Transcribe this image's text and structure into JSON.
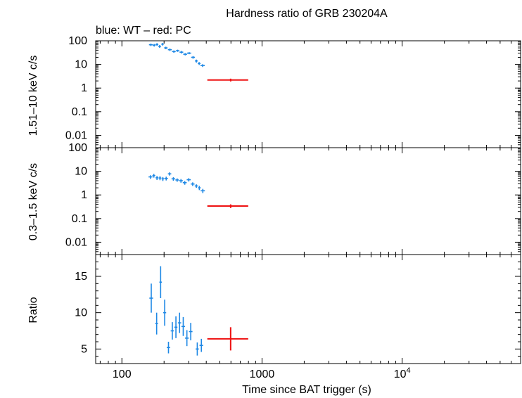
{
  "header": {
    "title": "Hardness ratio of GRB 230204A",
    "subtitle": "blue: WT – red: PC"
  },
  "axes": {
    "xlabel": "Time since BAT trigger (s)",
    "ylabel_top": "1.51–10 keV c/s",
    "ylabel_mid": "0.3–1.5 keV c/s",
    "ylabel_bottom": "Ratio",
    "x_tick_labels": [
      {
        "value": 100,
        "label": "100"
      },
      {
        "value": 1000,
        "label": "1000"
      },
      {
        "value": 10000,
        "label": "10",
        "sup": "4"
      }
    ],
    "log_y_tick_labels": [
      {
        "value": 100,
        "label": "100"
      },
      {
        "value": 10,
        "label": "10"
      },
      {
        "value": 1,
        "label": "1"
      },
      {
        "value": 0.1,
        "label": "0.1"
      },
      {
        "value": 0.01,
        "label": "0.01"
      }
    ],
    "ratio_tick_labels": [
      {
        "value": 15,
        "label": "15"
      },
      {
        "value": 10,
        "label": "10"
      },
      {
        "value": 5,
        "label": "5"
      }
    ]
  },
  "colors": {
    "WT": "#1e88e5",
    "PC": "#ee1111",
    "axis": "#000000"
  },
  "chart_data": [
    {
      "type": "scatter",
      "panel": "hard",
      "xscale": "log",
      "yscale": "log",
      "xlim": [
        65,
        70000
      ],
      "ylim": [
        0.003,
        100
      ],
      "grid": false,
      "series": [
        {
          "name": "WT",
          "color": "#1e88e5",
          "points": [
            {
              "x": 161,
              "xerr": [
                5,
                5
              ],
              "y": 68,
              "yerr": [
                8,
                8
              ]
            },
            {
              "x": 170,
              "xerr": [
                4,
                4
              ],
              "y": 65,
              "yerr": [
                8,
                8
              ]
            },
            {
              "x": 178,
              "xerr": [
                4,
                4
              ],
              "y": 70,
              "yerr": [
                9,
                9
              ]
            },
            {
              "x": 186,
              "xerr": [
                4,
                4
              ],
              "y": 58,
              "yerr": [
                8,
                8
              ]
            },
            {
              "x": 195,
              "xerr": [
                4,
                4
              ],
              "y": 72,
              "yerr": [
                9,
                9
              ]
            },
            {
              "x": 206,
              "xerr": [
                6,
                6
              ],
              "y": 50,
              "yerr": [
                6,
                6
              ]
            },
            {
              "x": 220,
              "xerr": [
                7,
                7
              ],
              "y": 42,
              "yerr": [
                5,
                5
              ]
            },
            {
              "x": 235,
              "xerr": [
                7,
                7
              ],
              "y": 35,
              "yerr": [
                4,
                4
              ]
            },
            {
              "x": 250,
              "xerr": [
                7,
                7
              ],
              "y": 38,
              "yerr": [
                4,
                4
              ]
            },
            {
              "x": 266,
              "xerr": [
                8,
                8
              ],
              "y": 33,
              "yerr": [
                4,
                4
              ]
            },
            {
              "x": 283,
              "xerr": [
                9,
                9
              ],
              "y": 27,
              "yerr": [
                3,
                3
              ]
            },
            {
              "x": 302,
              "xerr": [
                10,
                10
              ],
              "y": 30,
              "yerr": [
                3,
                3
              ]
            },
            {
              "x": 322,
              "xerr": [
                10,
                10
              ],
              "y": 20,
              "yerr": [
                2.5,
                2.5
              ]
            },
            {
              "x": 340,
              "xerr": [
                8,
                8
              ],
              "y": 14,
              "yerr": [
                2,
                2
              ]
            },
            {
              "x": 356,
              "xerr": [
                8,
                8
              ],
              "y": 11,
              "yerr": [
                1.5,
                1.5
              ]
            },
            {
              "x": 377,
              "xerr": [
                13,
                13
              ],
              "y": 9,
              "yerr": [
                1.2,
                1.2
              ]
            }
          ]
        },
        {
          "name": "PC",
          "color": "#ee1111",
          "points": [
            {
              "x": 597,
              "xerr": [
                190,
                200
              ],
              "y": 2.2,
              "yerr": [
                0.3,
                0.3
              ]
            }
          ]
        }
      ]
    },
    {
      "type": "scatter",
      "panel": "soft",
      "xscale": "log",
      "yscale": "log",
      "xlim": [
        65,
        70000
      ],
      "ylim": [
        0.003,
        100
      ],
      "grid": false,
      "series": [
        {
          "name": "WT",
          "color": "#1e88e5",
          "points": [
            {
              "x": 160,
              "xerr": [
                5,
                5
              ],
              "y": 5.8,
              "yerr": [
                1.0,
                1.0
              ]
            },
            {
              "x": 169,
              "xerr": [
                4,
                4
              ],
              "y": 6.6,
              "yerr": [
                1.2,
                1.2
              ]
            },
            {
              "x": 178,
              "xerr": [
                4,
                4
              ],
              "y": 5.3,
              "yerr": [
                1.0,
                1.0
              ]
            },
            {
              "x": 187,
              "xerr": [
                4,
                4
              ],
              "y": 5.2,
              "yerr": [
                1.0,
                1.0
              ]
            },
            {
              "x": 196,
              "xerr": [
                4,
                4
              ],
              "y": 4.8,
              "yerr": [
                0.9,
                0.9
              ]
            },
            {
              "x": 207,
              "xerr": [
                6,
                6
              ],
              "y": 5.0,
              "yerr": [
                0.9,
                0.9
              ]
            },
            {
              "x": 219,
              "xerr": [
                6,
                6
              ],
              "y": 7.8,
              "yerr": [
                1.2,
                1.2
              ]
            },
            {
              "x": 233,
              "xerr": [
                7,
                7
              ],
              "y": 4.8,
              "yerr": [
                0.8,
                0.8
              ]
            },
            {
              "x": 248,
              "xerr": [
                7,
                7
              ],
              "y": 4.3,
              "yerr": [
                0.7,
                0.7
              ]
            },
            {
              "x": 264,
              "xerr": [
                8,
                8
              ],
              "y": 4.0,
              "yerr": [
                0.7,
                0.7
              ]
            },
            {
              "x": 281,
              "xerr": [
                9,
                9
              ],
              "y": 3.3,
              "yerr": [
                0.6,
                0.6
              ]
            },
            {
              "x": 300,
              "xerr": [
                10,
                10
              ],
              "y": 4.4,
              "yerr": [
                0.7,
                0.7
              ]
            },
            {
              "x": 320,
              "xerr": [
                10,
                10
              ],
              "y": 2.9,
              "yerr": [
                0.5,
                0.5
              ]
            },
            {
              "x": 340,
              "xerr": [
                9,
                9
              ],
              "y": 2.4,
              "yerr": [
                0.4,
                0.4
              ]
            },
            {
              "x": 357,
              "xerr": [
                8,
                8
              ],
              "y": 2.0,
              "yerr": [
                0.4,
                0.4
              ]
            },
            {
              "x": 378,
              "xerr": [
                13,
                13
              ],
              "y": 1.5,
              "yerr": [
                0.3,
                0.3
              ]
            }
          ]
        },
        {
          "name": "PC",
          "color": "#ee1111",
          "points": [
            {
              "x": 597,
              "xerr": [
                190,
                200
              ],
              "y": 0.34,
              "yerr": [
                0.06,
                0.06
              ]
            }
          ]
        }
      ]
    },
    {
      "type": "scatter",
      "panel": "ratio",
      "xscale": "log",
      "yscale": "linear",
      "xlim": [
        65,
        70000
      ],
      "ylim": [
        3,
        18
      ],
      "grid": false,
      "series": [
        {
          "name": "WT",
          "color": "#1e88e5",
          "points": [
            {
              "x": 162,
              "xerr": [
                5,
                5
              ],
              "y": 12.0,
              "yerr": [
                2.0,
                2.0
              ]
            },
            {
              "x": 177,
              "xerr": [
                4,
                4
              ],
              "y": 8.5,
              "yerr": [
                1.5,
                1.5
              ]
            },
            {
              "x": 189,
              "xerr": [
                4,
                4
              ],
              "y": 14.2,
              "yerr": [
                2.2,
                2.2
              ]
            },
            {
              "x": 202,
              "xerr": [
                5,
                5
              ],
              "y": 10.0,
              "yerr": [
                1.8,
                1.8
              ]
            },
            {
              "x": 215,
              "xerr": [
                6,
                6
              ],
              "y": 5.2,
              "yerr": [
                0.8,
                0.8
              ]
            },
            {
              "x": 229,
              "xerr": [
                6,
                6
              ],
              "y": 7.5,
              "yerr": [
                1.2,
                1.2
              ]
            },
            {
              "x": 243,
              "xerr": [
                6,
                6
              ],
              "y": 8.0,
              "yerr": [
                1.5,
                1.5
              ]
            },
            {
              "x": 258,
              "xerr": [
                7,
                7
              ],
              "y": 8.6,
              "yerr": [
                1.4,
                1.4
              ]
            },
            {
              "x": 274,
              "xerr": [
                8,
                8
              ],
              "y": 8.1,
              "yerr": [
                1.3,
                1.3
              ]
            },
            {
              "x": 291,
              "xerr": [
                9,
                9
              ],
              "y": 6.5,
              "yerr": [
                1.1,
                1.1
              ]
            },
            {
              "x": 310,
              "xerr": [
                9,
                9
              ],
              "y": 7.4,
              "yerr": [
                1.2,
                1.2
              ]
            },
            {
              "x": 345,
              "xerr": [
                9,
                9
              ],
              "y": 5.0,
              "yerr": [
                0.9,
                0.9
              ]
            },
            {
              "x": 369,
              "xerr": [
                11,
                11
              ],
              "y": 5.5,
              "yerr": [
                0.9,
                0.9
              ]
            }
          ]
        },
        {
          "name": "PC",
          "color": "#ee1111",
          "points": [
            {
              "x": 597,
              "xerr": [
                190,
                200
              ],
              "y": 6.4,
              "yerr": [
                1.6,
                1.6
              ]
            }
          ]
        }
      ]
    }
  ]
}
